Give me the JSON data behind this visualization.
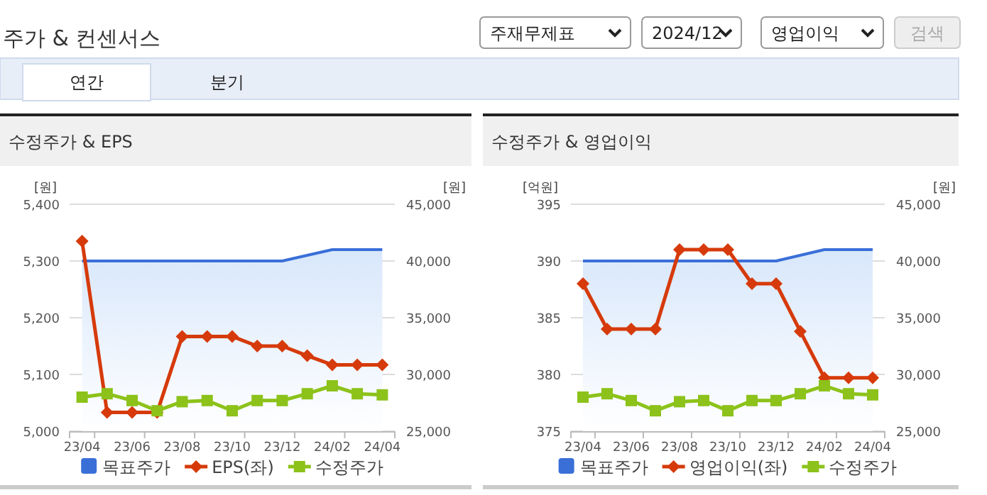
{
  "chart_data": [
    {
      "type": "other",
      "title": "주가 & 컨센서스",
      "annotations": [
        "주재무제표",
        "2024/12",
        "영업이익",
        "검색",
        "연간",
        "분기"
      ]
    },
    {
      "type": "line",
      "title": "수정주가 & EPS",
      "ylabel": "[원]",
      "y2label": "[원]",
      "categories": [
        "23/04",
        null,
        "23/06",
        null,
        "23/08",
        null,
        "23/10",
        null,
        "23/12",
        null,
        "24/02",
        null,
        "24/04"
      ],
      "ylim": [
        5000,
        5400
      ],
      "yticks": [
        {
          "value": 5000,
          "label": "5,000"
        },
        {
          "value": 5100,
          "label": "5,100"
        },
        {
          "value": 5200,
          "label": "5,200"
        },
        {
          "value": 5300,
          "label": "5,300"
        },
        {
          "value": 5400,
          "label": "5,400"
        }
      ],
      "y2lim": [
        25000,
        45000
      ],
      "y2ticks": [
        {
          "value": 25000,
          "label": "25,000"
        },
        {
          "value": 30000,
          "label": "30,000"
        },
        {
          "value": 35000,
          "label": "35,000"
        },
        {
          "value": 40000,
          "label": "40,000"
        },
        {
          "value": 45000,
          "label": "45,000"
        }
      ],
      "grid": "y",
      "legend": "bottom",
      "series": [
        {
          "name": "목표주가",
          "type": "area",
          "axis": "y2",
          "color": "#3a6fd8",
          "marker": "none",
          "values": [
            40000,
            40000,
            40000,
            40000,
            40000,
            40000,
            40000,
            40000,
            40000,
            40500,
            41000,
            41000,
            41000
          ]
        },
        {
          "name": "EPS(좌)",
          "type": "line",
          "color": "#d63a0b",
          "marker": "diamond",
          "values": [
            5335,
            5033,
            5033,
            5033,
            5167,
            5167,
            5167,
            5150,
            5150,
            5133,
            5117,
            5117,
            5117
          ]
        },
        {
          "name": "수정주가",
          "type": "line",
          "axis": "y2",
          "color": "#8cc21a",
          "marker": "square",
          "values": [
            28000,
            28300,
            27700,
            26800,
            27600,
            27700,
            26800,
            27700,
            27700,
            28300,
            29000,
            28300,
            28200
          ]
        }
      ]
    },
    {
      "type": "line",
      "title": "수정주가 & 영업이익",
      "ylabel": "[억원]",
      "y2label": "[원]",
      "categories": [
        "23/04",
        null,
        "23/06",
        null,
        "23/08",
        null,
        "23/10",
        null,
        "23/12",
        null,
        "24/02",
        null,
        "24/04"
      ],
      "ylim": [
        375,
        395
      ],
      "yticks": [
        375,
        380,
        385,
        390,
        395
      ],
      "y2lim": [
        25000,
        45000
      ],
      "y2ticks": [
        {
          "value": 25000,
          "label": "25,000"
        },
        {
          "value": 30000,
          "label": "30,000"
        },
        {
          "value": 35000,
          "label": "35,000"
        },
        {
          "value": 40000,
          "label": "40,000"
        },
        {
          "value": 45000,
          "label": "45,000"
        }
      ],
      "grid": "y",
      "legend": "bottom",
      "series": [
        {
          "name": "목표주가",
          "type": "area",
          "axis": "y2",
          "color": "#3a6fd8",
          "marker": "none",
          "values": [
            40000,
            40000,
            40000,
            40000,
            40000,
            40000,
            40000,
            40000,
            40000,
            40500,
            41000,
            41000,
            41000
          ]
        },
        {
          "name": "영업이익(좌)",
          "type": "line",
          "color": "#d63a0b",
          "marker": "diamond",
          "values": [
            388,
            384,
            384,
            384,
            391,
            391,
            391,
            388,
            388,
            383.8,
            379.7,
            379.7,
            379.7
          ]
        },
        {
          "name": "수정주가",
          "type": "line",
          "axis": "y2",
          "color": "#8cc21a",
          "marker": "square",
          "values": [
            28000,
            28300,
            27700,
            26800,
            27600,
            27700,
            26800,
            27700,
            27700,
            28300,
            29000,
            28300,
            28200
          ]
        }
      ]
    }
  ]
}
